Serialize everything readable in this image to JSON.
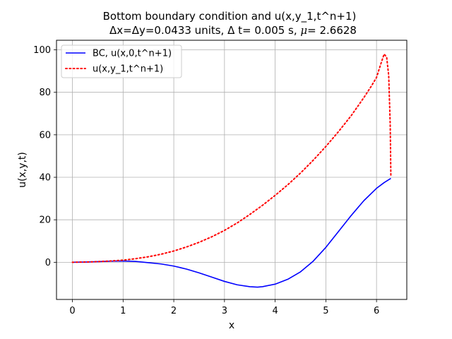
{
  "chart_data": {
    "type": "line",
    "title": "Bottom boundary condition and u(x,y_1,t^n+1)",
    "subtitle_parts": {
      "prefix": "Δx=Δy=0.0433 units, Δ t= 0.005 s, ",
      "mu_symbol": "μ",
      "suffix": "= 2.6628"
    },
    "xlabel": "x",
    "ylabel": "u(x,y,t)",
    "xlim": [
      -0.3142,
      6.5973
    ],
    "ylim": [
      -17.5,
      104.5
    ],
    "xticks": [
      0,
      1,
      2,
      3,
      4,
      5,
      6
    ],
    "yticks": [
      0,
      20,
      40,
      60,
      80,
      100
    ],
    "grid": true,
    "legend_position": "upper-left",
    "series": [
      {
        "name": "BC, u(x,0,t^n+1)",
        "color": "#0000ff",
        "style": "solid",
        "x": [
          0,
          0.25,
          0.5,
          0.75,
          1.0,
          1.25,
          1.5,
          1.75,
          2.0,
          2.25,
          2.5,
          2.75,
          3.0,
          3.25,
          3.5,
          3.65,
          3.75,
          4.0,
          4.25,
          4.5,
          4.75,
          5.0,
          5.25,
          5.5,
          5.75,
          6.0,
          6.15,
          6.2832
        ],
        "y": [
          0,
          0.1,
          0.3,
          0.5,
          0.6,
          0.4,
          -0.2,
          -0.8,
          -1.8,
          -3.2,
          -5.0,
          -7.0,
          -9.0,
          -10.6,
          -11.5,
          -11.7,
          -11.5,
          -10.3,
          -8.0,
          -4.5,
          0.5,
          7.0,
          14.5,
          22.0,
          29.0,
          34.8,
          37.5,
          39.5
        ]
      },
      {
        "name": "u(x,y_1,t^n+1)",
        "color": "#ff0000",
        "style": "dotted",
        "x": [
          0,
          0.25,
          0.5,
          0.75,
          1.0,
          1.25,
          1.5,
          1.75,
          2.0,
          2.25,
          2.5,
          2.75,
          3.0,
          3.25,
          3.5,
          3.75,
          4.0,
          4.25,
          4.5,
          4.75,
          5.0,
          5.25,
          5.5,
          5.75,
          5.9,
          6.0,
          6.08,
          6.15,
          6.2,
          6.24,
          6.27,
          6.2832
        ],
        "y": [
          0,
          0.1,
          0.3,
          0.6,
          1.0,
          1.7,
          2.6,
          3.8,
          5.3,
          7.2,
          9.4,
          12.0,
          15.0,
          18.5,
          22.5,
          26.8,
          31.5,
          36.5,
          42.0,
          48.0,
          54.5,
          61.5,
          69.0,
          77.5,
          83.0,
          87.0,
          93.0,
          98.0,
          96.5,
          88.0,
          65.0,
          40.0
        ]
      }
    ]
  }
}
